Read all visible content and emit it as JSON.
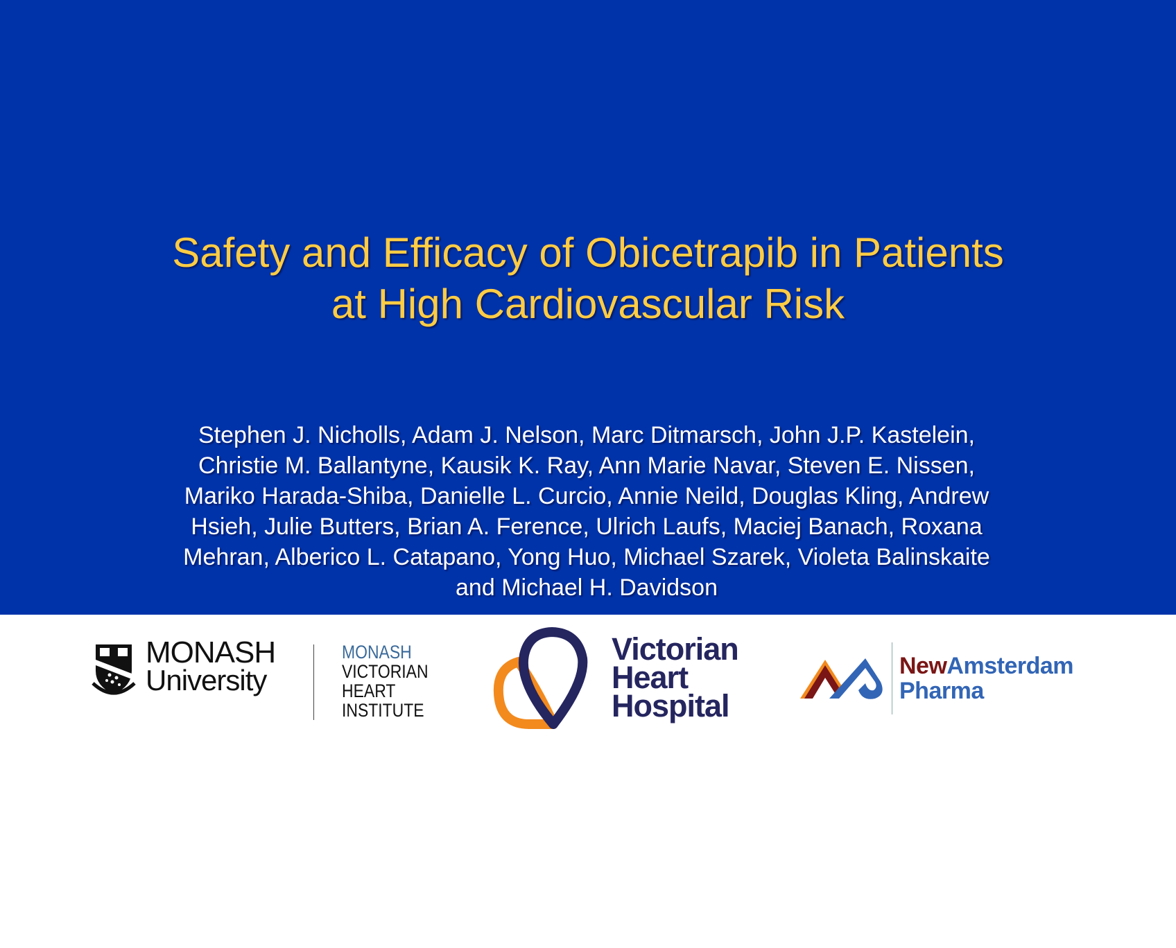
{
  "slide": {
    "title_lines": [
      "Safety and Efficacy of Obicetrapib in Patients",
      "at High Cardiovascular Risk"
    ],
    "author_lines": [
      "Stephen J. Nicholls, Adam J. Nelson, Marc Ditmarsch, John J.P. Kastelein,",
      "Christie M. Ballantyne, Kausik K. Ray, Ann Marie Navar, Steven E. Nissen,",
      "Mariko Harada-Shiba, Danielle L. Curcio, Annie Neild, Douglas Kling, Andrew",
      "Hsieh, Julie Butters, Brian A. Ference, Ulrich Laufs, Maciej Banach, Roxana",
      "Mehran, Alberico L. Catapano, Yong Huo, Michael Szarek, Violeta Balinskaite",
      "and Michael H. Davidson"
    ]
  },
  "logos": {
    "monash": {
      "line1": "MONASH",
      "line2": "University"
    },
    "mvhi": {
      "line1": "MONASH",
      "line2": "VICTORIAN",
      "line3": "HEART",
      "line4": "INSTITUTE"
    },
    "vhh": {
      "line1": "Victorian",
      "line2": "Heart",
      "line3": "Hospital"
    },
    "newamsterdam": {
      "new": "New",
      "amsterdam": "Amsterdam",
      "pharma": "Pharma"
    }
  },
  "colors": {
    "background_blue": "#0033aa",
    "title_yellow": "#ffcc44",
    "vhh_navy": "#25255f",
    "vhh_orange": "#f28a1e",
    "na_red": "#7a1616",
    "na_blue": "#3265b5"
  }
}
